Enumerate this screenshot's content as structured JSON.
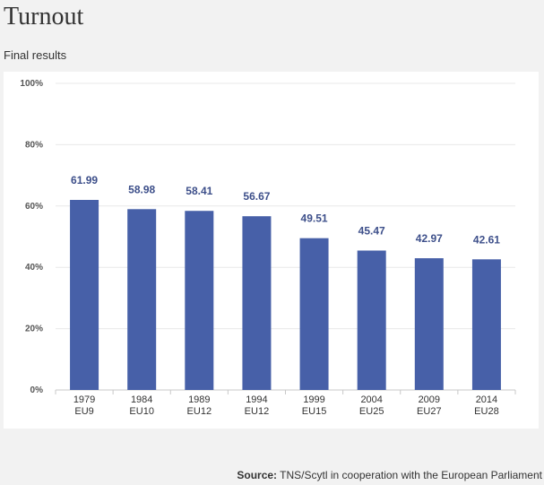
{
  "page": {
    "title": "Turnout",
    "subtitle": "Final results",
    "source_label": "Source:",
    "source_text": "TNS/Scytl in cooperation with the European Parliament"
  },
  "chart_data": {
    "type": "bar",
    "title": "Turnout",
    "subtitle": "Final results",
    "categories": [
      "1979",
      "1984",
      "1989",
      "1994",
      "1999",
      "2004",
      "2009",
      "2014"
    ],
    "category_sublabels": [
      "EU9",
      "EU10",
      "EU12",
      "EU12",
      "EU15",
      "EU25",
      "EU27",
      "EU28"
    ],
    "values": [
      61.99,
      58.98,
      58.41,
      56.67,
      49.51,
      45.47,
      42.97,
      42.61
    ],
    "value_labels": [
      "61.99",
      "58.98",
      "58.41",
      "56.67",
      "49.51",
      "45.47",
      "42.97",
      "42.61"
    ],
    "ylim": [
      0,
      100
    ],
    "yticks": [
      0,
      20,
      40,
      60,
      80,
      100
    ],
    "ytick_labels": [
      "0%",
      "20%",
      "40%",
      "60%",
      "80%",
      "100%"
    ],
    "grid": true,
    "legend": "none",
    "bar_color": "#4760a8"
  }
}
